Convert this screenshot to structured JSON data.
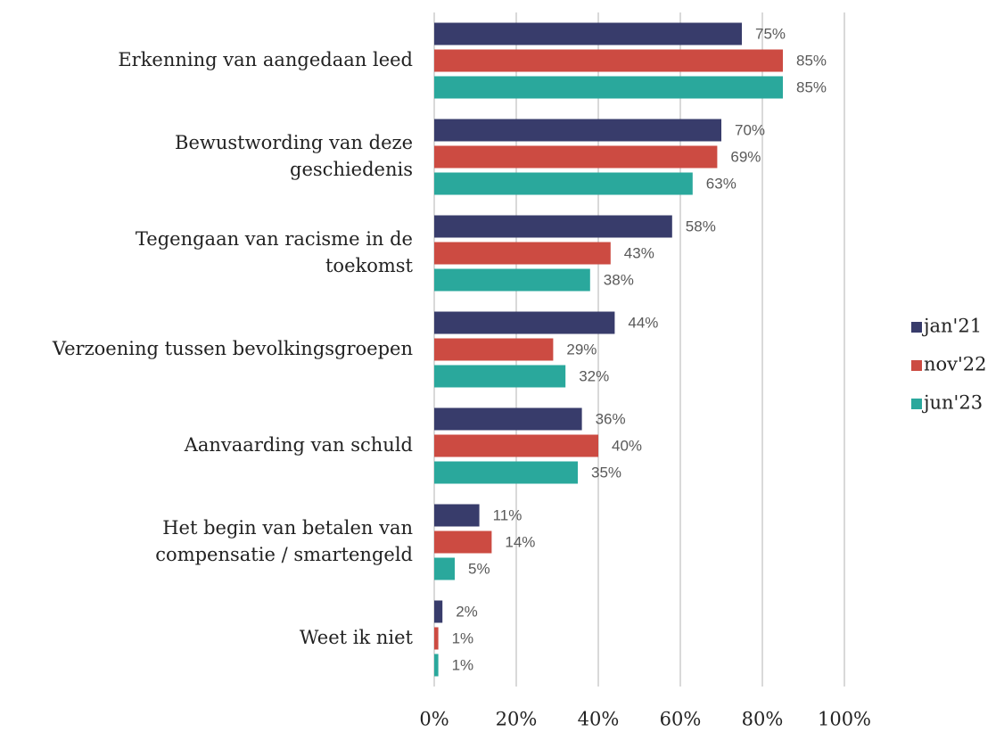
{
  "chart_data": {
    "type": "bar",
    "orientation": "horizontal",
    "categories": [
      "Erkenning van aangedaan leed",
      "Bewustwording van deze\ngeschiedenis",
      "Tegengaan van racisme in de\ntoekomst",
      "Verzoening tussen bevolkingsgroepen",
      "Aanvaarding van schuld",
      "Het begin van betalen van\ncompensatie / smartengeld",
      "Weet ik niet"
    ],
    "series": [
      {
        "name": "jan'21",
        "color": "#383c6b",
        "values": [
          75,
          70,
          58,
          44,
          36,
          11,
          2
        ],
        "value_labels": [
          "75%",
          "70%",
          "58%",
          "44%",
          "36%",
          "11%",
          "2%"
        ]
      },
      {
        "name": "nov'22",
        "color": "#cc4b42",
        "values": [
          85,
          69,
          43,
          29,
          40,
          14,
          1
        ],
        "value_labels": [
          "85%",
          "69%",
          "43%",
          "29%",
          "40%",
          "14%",
          "1%"
        ]
      },
      {
        "name": "jun'23",
        "color": "#2aa89c",
        "values": [
          85,
          63,
          38,
          32,
          35,
          5,
          1
        ],
        "value_labels": [
          "85%",
          "63%",
          "38%",
          "32%",
          "35%",
          "5%",
          "1%"
        ]
      }
    ],
    "xlim": [
      0,
      100
    ],
    "xticks": [
      {
        "value": 0,
        "label": "0%"
      },
      {
        "value": 20,
        "label": "20%"
      },
      {
        "value": 40,
        "label": "40%"
      },
      {
        "value": 60,
        "label": "60%"
      },
      {
        "value": 80,
        "label": "80%"
      },
      {
        "value": 100,
        "label": "100%"
      }
    ],
    "grid": true,
    "legend": "right"
  }
}
